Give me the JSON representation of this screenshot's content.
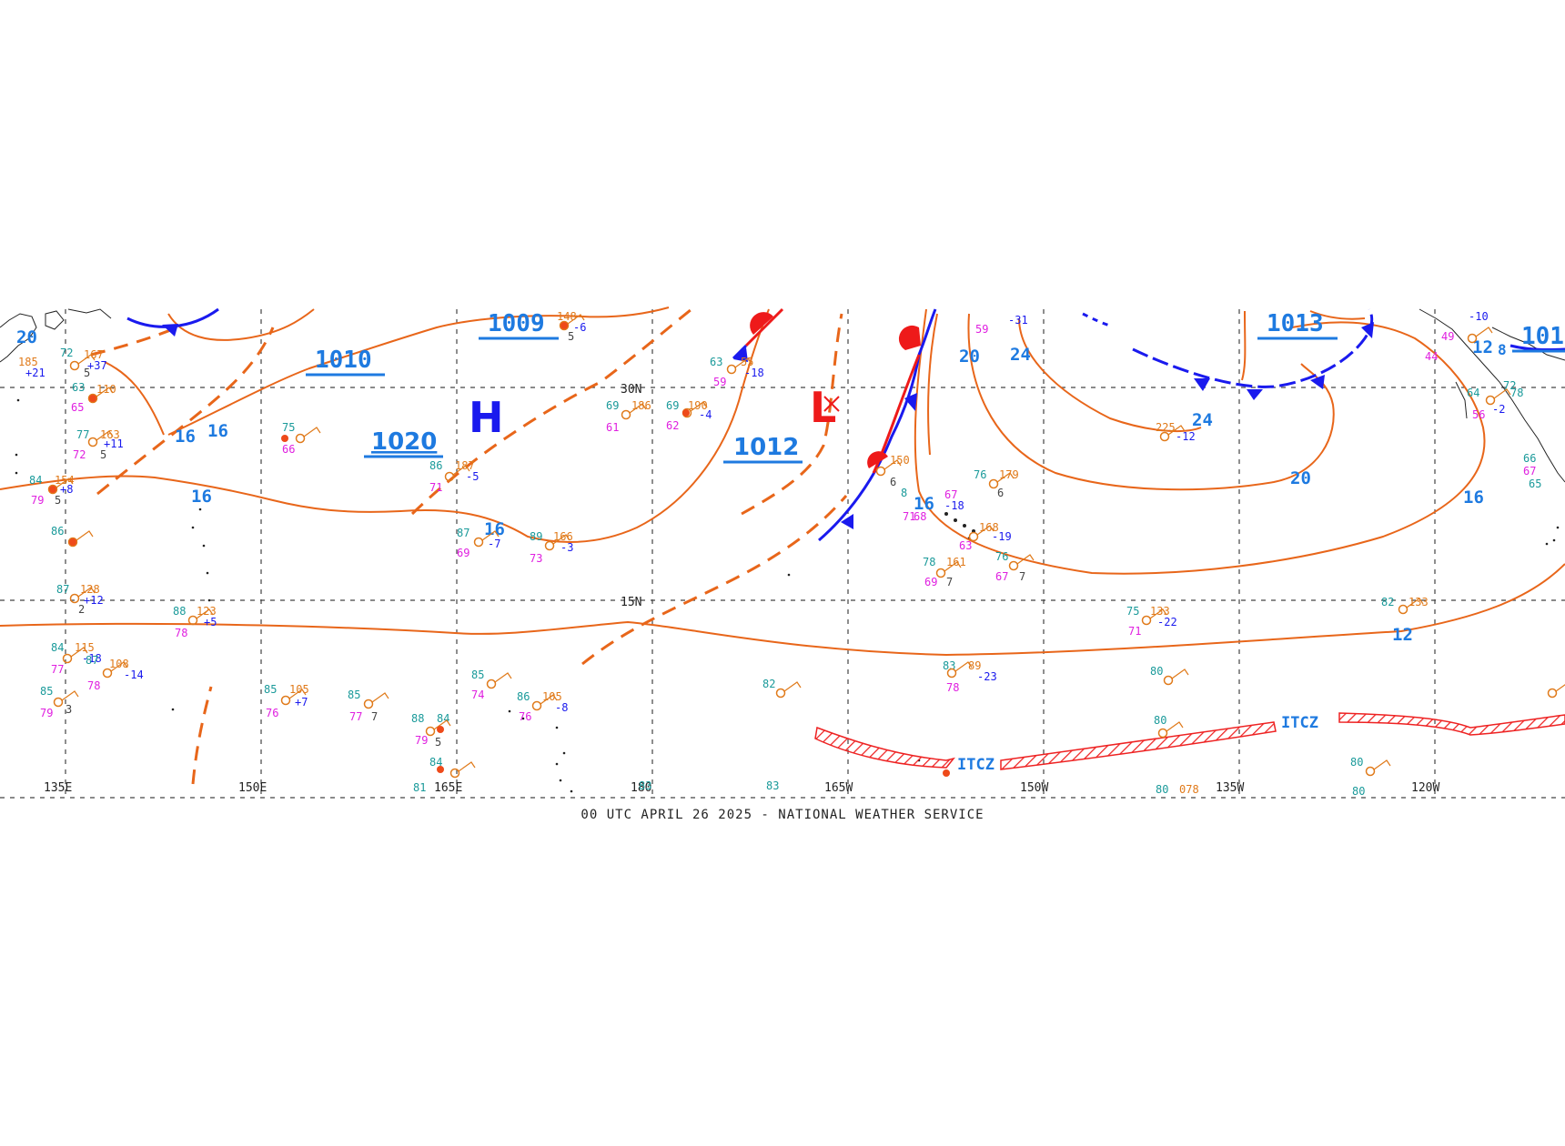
{
  "footer": "00 UTC APRIL 26 2025 - NATIONAL WEATHER SERVICE",
  "colors": {
    "isobar": "#e8661a",
    "trough": "#e8661a",
    "label": "#1e7ae0",
    "front_cold": "#1a1aee",
    "front_warm": "#ee1a1a",
    "high": "#1a1aee",
    "low": "#ee1a1a",
    "grid": "#444444",
    "temp": "#1a9a9a",
    "dewpoint": "#e020e0",
    "pressure": "#e07a1a",
    "tendency": "#1a1aee",
    "itcz": "#ee2222"
  },
  "grid_labels": {
    "longitudes": [
      "135E",
      "150E",
      "165E",
      "180",
      "165W",
      "150W",
      "135W",
      "120W"
    ],
    "latitudes": [
      "30N",
      "15N"
    ]
  },
  "pressure_centers": [
    {
      "type": "H",
      "value": "1020"
    },
    {
      "type": "L",
      "value": "1012"
    }
  ],
  "pressure_values": [
    "1009",
    "1010",
    "1013",
    "101"
  ],
  "isobar_labels": [
    "20",
    "16",
    "16",
    "16",
    "16",
    "20",
    "24",
    "24",
    "20",
    "16",
    "12",
    "12",
    "8"
  ],
  "itcz_labels": [
    "ITCZ",
    "ITCZ"
  ],
  "station_text": [
    "185",
    "+21",
    "72",
    "167",
    "+37",
    "5",
    "110",
    "65",
    "63",
    "77",
    "163",
    "+11",
    "72",
    "5",
    "84",
    "154",
    "+8",
    "79",
    "5",
    "86",
    "87",
    "128",
    "+12",
    "2",
    "84",
    "115",
    "-18",
    "87",
    "108",
    "-14",
    "77",
    "78",
    "85",
    "79",
    "3",
    "88",
    "123",
    "+5",
    "78",
    "75",
    "66",
    "85",
    "105",
    "+7",
    "76",
    "85",
    "77",
    "7",
    "88",
    "84",
    "79",
    "5",
    "84",
    "81",
    "86",
    "187",
    "-5",
    "71",
    "87",
    "-7",
    "69",
    "148",
    "-6",
    "5",
    "69",
    "186",
    "61",
    "69",
    "190",
    "-4",
    "62",
    "89",
    "166",
    "-3",
    "73",
    "85",
    "74",
    "86",
    "105",
    "-8",
    "76",
    "63",
    "55",
    "-18",
    "59",
    "150",
    "6",
    "8",
    "71",
    "68",
    "76",
    "179",
    "67",
    "6",
    "-18",
    "168",
    "-19",
    "63",
    "78",
    "161",
    "69",
    "7",
    "76",
    "67",
    "7",
    "59",
    "-31",
    "225",
    "-12",
    "82",
    "83",
    "89",
    "-23",
    "78",
    "75",
    "133",
    "-22",
    "71",
    "80",
    "80",
    "80",
    "078",
    "80",
    "80",
    "83",
    "83",
    "82",
    "133",
    "64",
    "56",
    "44",
    "49",
    "72",
    "78",
    "67",
    "66",
    "65",
    "-10",
    "-2"
  ]
}
